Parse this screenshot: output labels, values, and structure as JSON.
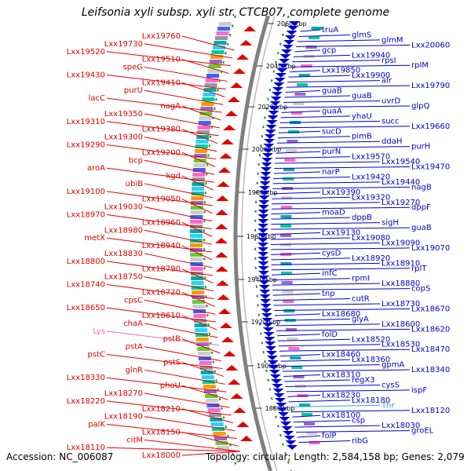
{
  "title": "Leifsonia xyli subsp. xyli str. CTCB07, complete genome",
  "footer": {
    "accession": "Accession: NC_006087",
    "topology": "Topology: circular; Length: 2,584,158 bp; Genes: 2,079"
  },
  "colors": {
    "reverse": "#e00000",
    "forward": "#0000cc",
    "trna": "#e070c0",
    "rrna": "#29a7e0",
    "backbone": "#808080",
    "tick": "#2a8a2a"
  },
  "scale_ticks": [
    "2060 kbp",
    "2040 kbp",
    "2020 kbp",
    "2000 kbp",
    "1980 kbp",
    "1960 kbp",
    "1940 kbp",
    "1920 kbp",
    "1900 kbp",
    "1880 kbp"
  ],
  "left_labels": [
    "Lxx19760",
    "Lxx19730",
    "Lxx19520",
    "Lxx19510",
    "speG",
    "Lxx19430",
    "Lxx19410",
    "purU",
    "lacC",
    "nagA",
    "Lxx19350",
    "Lxx19310",
    "Lxx19380",
    "Lxx19300",
    "Lxx19290",
    "Lxx19200",
    "bcp",
    "aroA",
    "kgd",
    "ubiB",
    "Lxx19100",
    "Lxx19050",
    "Lxx19030",
    "Lxx18970",
    "Lxx18960",
    "Lxx18980",
    "metX",
    "Lxx18940",
    "Lxx18830",
    "Lxx18800",
    "Lxx18790",
    "Lxx18750",
    "Lxx18740",
    "Lxx18720",
    "cpsC",
    "Lxx18650",
    "Lxx18610",
    "chaA",
    "Lys",
    "pstB",
    "pstA",
    "pstC",
    "pstS",
    "glnR",
    "Lxx18330",
    "phoU",
    "Lxx18270",
    "Lxx18220",
    "Lxx18210",
    "Lxx18190",
    "palK",
    "Lxx18150",
    "citM",
    "Lxx18110",
    "Lxx18000"
  ],
  "right_labels": [
    "truA",
    "glmS",
    "glmM",
    "Lxx20060",
    "gcp",
    "Lxx19940",
    "rpsI",
    "rplM",
    "Lxx19850",
    "Lxx19900",
    "alr",
    "Lxx19790",
    "guaB",
    "guaB",
    "uvrD",
    "glpQ",
    "guaA",
    "yhaU",
    "succ",
    "Lxx19660",
    "sucD",
    "pimB",
    "ddaH",
    "purH",
    "purN",
    "Lxx19570",
    "Lxx19540",
    "Lxx19470",
    "narP",
    "Lxx19420",
    "Lxx19440",
    "nagB",
    "Lxx19390",
    "Lxx19320",
    "Lxx19270",
    "dppF",
    "moaD",
    "dppB",
    "sigH",
    "guaB",
    "Lxx19130",
    "Lxx19080",
    "Lxx19090",
    "Lxx19070",
    "cysD",
    "Lxx18920",
    "Lxx18910",
    "rplT",
    "infC",
    "rpmI",
    "Lxx18880",
    "copS",
    "tnp",
    "cutR",
    "Lxx18730",
    "Lxx18670",
    "Lxx18680",
    "glyA",
    "Lxx18600",
    "Lxx18620",
    "folD",
    "Lxx18520",
    "Lxx18530",
    "Lxx18470",
    "Lxx18460",
    "Lxx18360",
    "gpmA",
    "Lxx18340",
    "Lxx18310",
    "regX3",
    "cysS",
    "ispF",
    "Lxx18230",
    "Lxx18180",
    "Thr",
    "Lxx18120",
    "Lxx18100",
    "csp",
    "Lxx18030",
    "groEL",
    "folP",
    "ribG"
  ]
}
